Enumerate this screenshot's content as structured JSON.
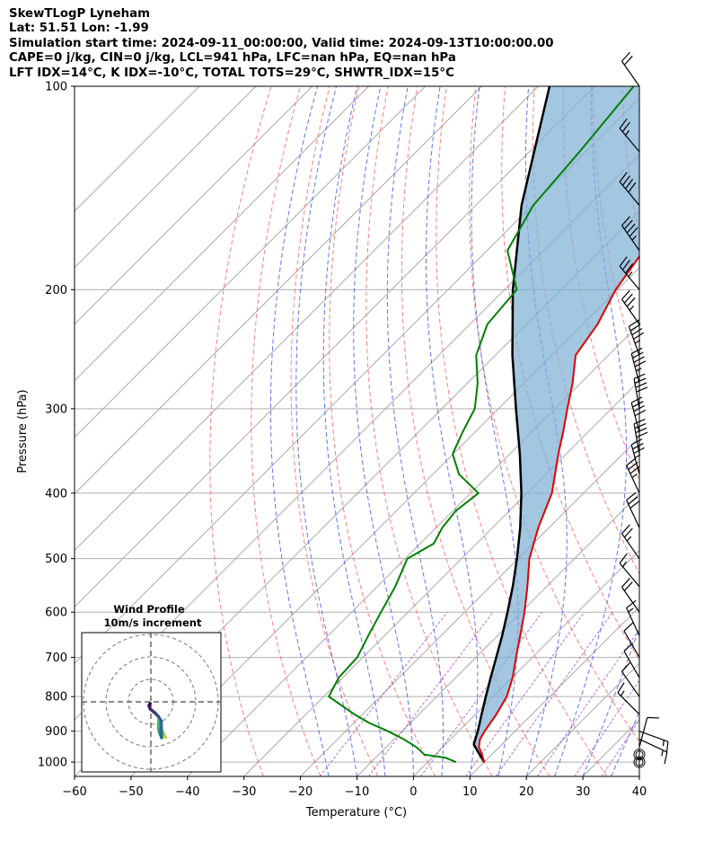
{
  "header": {
    "line1": "SkewTLogP Lyneham",
    "line2": "Lat: 51.51   Lon: -1.99",
    "line3": "Simulation start time: 2024-09-11_00:00:00, Valid time: 2024-09-13T10:00:00.00",
    "line4": "CAPE=0 j/kg, CIN=0 j/kg, LCL=941 hPa, LFC=nan hPa, EQ=nan hPa",
    "line5": "LFT IDX=14°C, K IDX=-10°C, TOTAL TOTS=29°C, SHWTR_IDX=15°C"
  },
  "chart_data": {
    "type": "skew-t log-p",
    "xlabel": "Temperature (°C)",
    "ylabel": "Pressure (hPa)",
    "xlim": [
      -60,
      40
    ],
    "ylim": [
      1050,
      100
    ],
    "x_ticks": [
      -60,
      -50,
      -40,
      -30,
      -20,
      -10,
      0,
      10,
      20,
      30,
      40
    ],
    "y_ticks": [
      100,
      200,
      300,
      400,
      500,
      600,
      700,
      800,
      900,
      1000
    ],
    "grid": true,
    "colors": {
      "temperature": "#e00000",
      "dewpoint": "#008000",
      "parcel": "#000000",
      "cin_shading": "#7fb0d6",
      "dry_adiabats": "#ff6060",
      "moist_adiabats": "#4a5af0",
      "mixing_ratio": "#9b30c0",
      "isotherms": "#a9a9a9"
    },
    "temperature": {
      "name": "Temperature",
      "p": [
        1000,
        975,
        950,
        925,
        900,
        850,
        800,
        750,
        700,
        650,
        600,
        550,
        500,
        450,
        400,
        375,
        350,
        325,
        300,
        275,
        250,
        225,
        200,
        175,
        150,
        125,
        100
      ],
      "t": [
        10,
        8.3,
        6.4,
        5.2,
        4.6,
        3.7,
        2.4,
        0.1,
        -2.9,
        -6,
        -9.4,
        -13.4,
        -18,
        -21.9,
        -25.6,
        -28.4,
        -31.4,
        -34.4,
        -37.8,
        -41.4,
        -45.8,
        -47.4,
        -50.3,
        -52.3,
        -55,
        -59.7,
        -64.4
      ]
    },
    "dewpoint": {
      "name": "Dewpoint",
      "p": [
        1000,
        985,
        975,
        950,
        925,
        900,
        875,
        850,
        800,
        750,
        700,
        650,
        600,
        550,
        500,
        475,
        450,
        425,
        400,
        375,
        350,
        325,
        300,
        275,
        250,
        225,
        200,
        175,
        150,
        125,
        100
      ],
      "t": [
        5,
        2.3,
        -1.9,
        -4.7,
        -8.3,
        -12.5,
        -17.3,
        -21.4,
        -29.1,
        -30.7,
        -31,
        -32.9,
        -34.8,
        -36.8,
        -39.6,
        -37.6,
        -38.9,
        -39.5,
        -38.6,
        -45.4,
        -50.1,
        -52.2,
        -54.2,
        -58.2,
        -63.4,
        -66.9,
        -67.8,
        -76.4,
        -79.8,
        -81.1,
        -83.1
      ]
    },
    "parcel": {
      "name": "Parcel",
      "p": [
        1000,
        960,
        941,
        900,
        850,
        800,
        750,
        700,
        650,
        600,
        550,
        500,
        450,
        400,
        350,
        300,
        250,
        200,
        150,
        100
      ],
      "t": [
        10,
        6.6,
        5.0,
        3.4,
        1.1,
        -1.3,
        -3.8,
        -6.4,
        -9.2,
        -12.4,
        -16.0,
        -20.2,
        -25.1,
        -31.0,
        -38.2,
        -46.9,
        -57.0,
        -68.5,
        -81.9,
        -98.0
      ]
    },
    "wind_barbs": {
      "p": [
        1000,
        975,
        950,
        925,
        900,
        850,
        800,
        750,
        700,
        650,
        600,
        550,
        500,
        450,
        400,
        375,
        350,
        325,
        300,
        275,
        250,
        225,
        200,
        175,
        150,
        125,
        100
      ],
      "speed_kt": [
        0,
        0,
        10,
        15,
        15,
        15,
        10,
        10,
        10,
        15,
        20,
        15,
        25,
        30,
        35,
        35,
        40,
        40,
        40,
        45,
        45,
        35,
        35,
        45,
        40,
        25,
        20
      ],
      "dir_deg": [
        0,
        0,
        15,
        115,
        110,
        315,
        325,
        330,
        330,
        335,
        325,
        320,
        325,
        335,
        335,
        345,
        350,
        345,
        350,
        345,
        340,
        325,
        320,
        325,
        320,
        320,
        325
      ]
    },
    "hodograph": {
      "title": "Wind Profile",
      "subtitle": "10m/s increment",
      "ring_step_ms": 10,
      "u": [
        6.5,
        6,
        5.5,
        5,
        4.3,
        3.6,
        3.4,
        3.5,
        3.7,
        4,
        4.5,
        4.8,
        4.6,
        3.4,
        1.8,
        -0.3,
        -0.8,
        -0.6,
        -0.3
      ],
      "v": [
        -15.8,
        -15,
        -14,
        -13,
        -12,
        -8,
        -10,
        -12,
        -13,
        -14,
        -15.2,
        -16,
        -8.5,
        -6.6,
        -4.9,
        -3.2,
        -1.8,
        -1.2,
        -0.8
      ],
      "levels": [
        1000,
        975,
        950,
        925,
        900,
        900,
        850,
        800,
        750,
        700,
        650,
        600,
        550,
        500,
        450,
        400,
        300,
        200,
        100
      ]
    }
  }
}
